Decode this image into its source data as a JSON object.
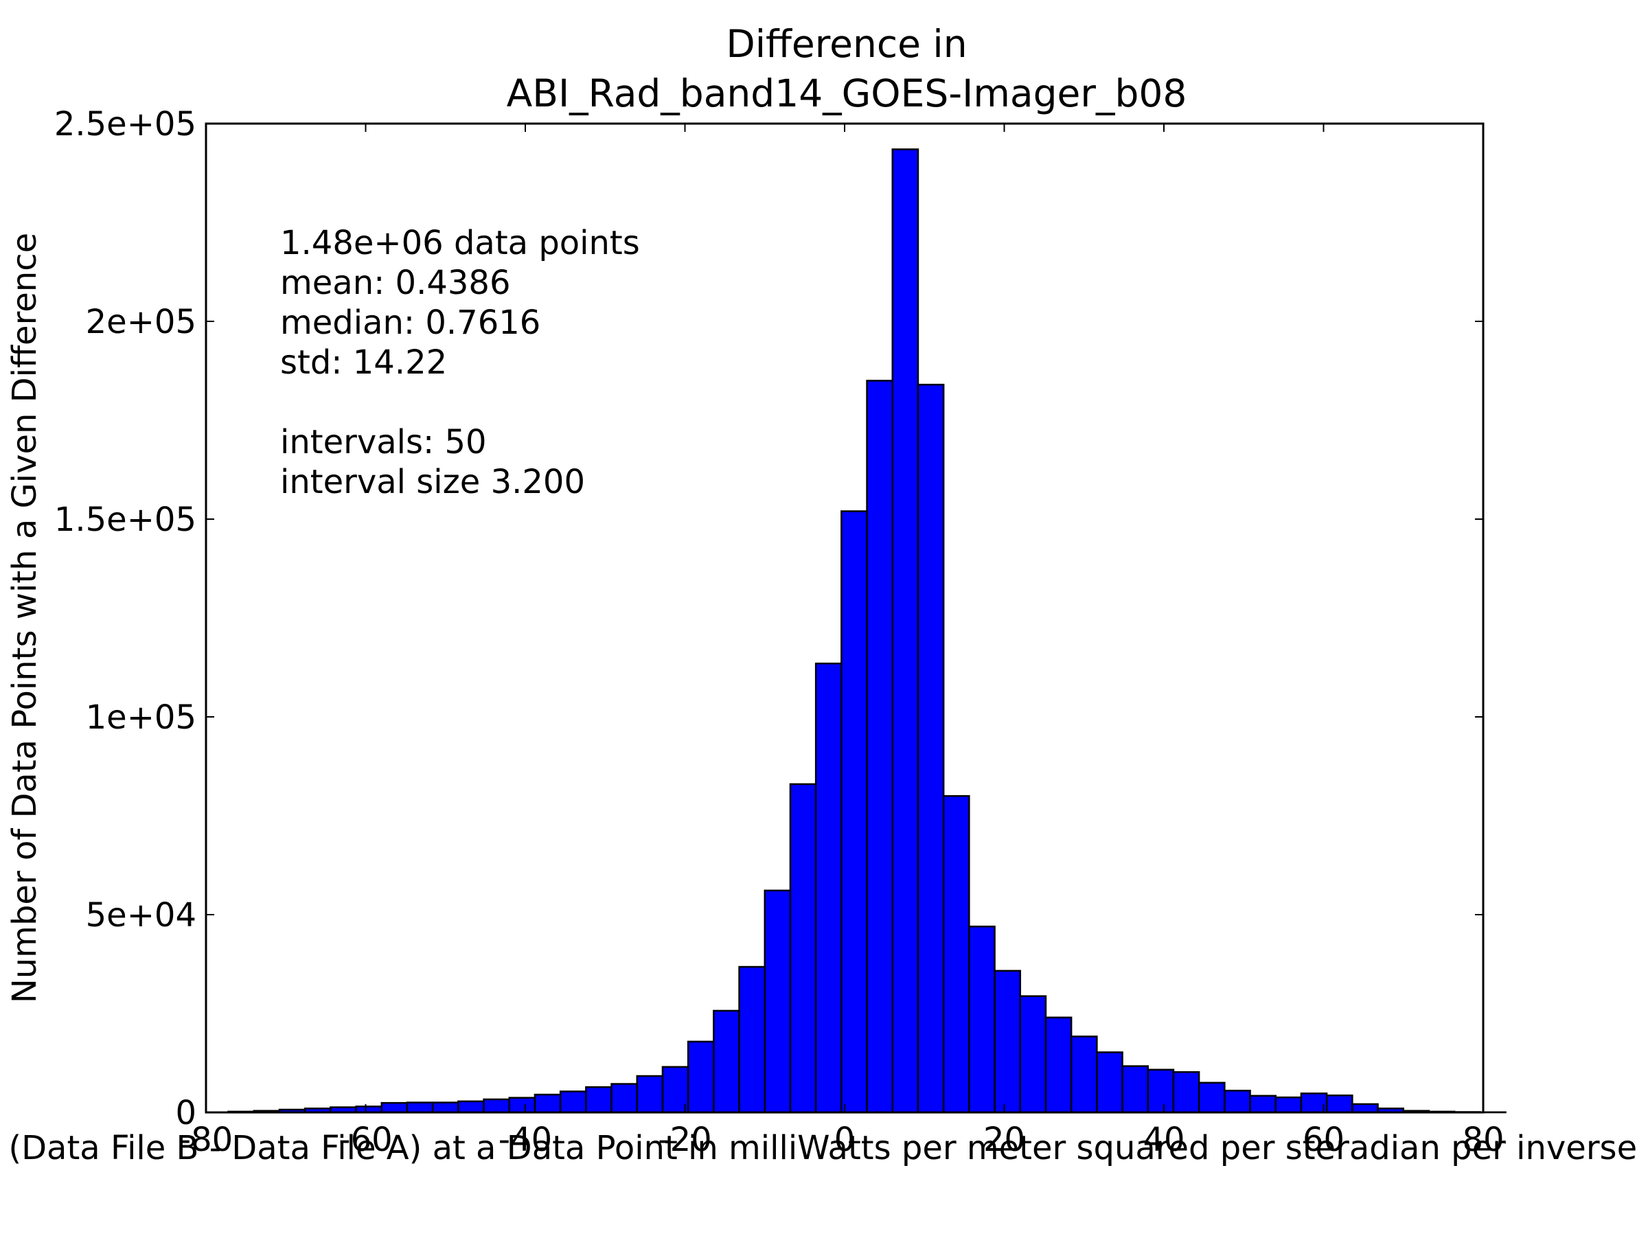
{
  "chart_data": {
    "type": "bar",
    "title_lines": [
      "Difference in",
      "ABI_Rad_band14_GOES-Imager_b08"
    ],
    "xlabel": "Value of (Data File B - Data File A) at a Data Point in milliWatts per meter squared per steradian per inverse centimeter",
    "ylabel": "Number of Data Points with a Given Difference",
    "xlim": [
      -80,
      80
    ],
    "ylim": [
      0,
      250000
    ],
    "x_ticks": [
      -80,
      -60,
      -40,
      -20,
      0,
      20,
      40,
      60,
      80
    ],
    "x_tick_labels": [
      "-80",
      "-60",
      "-40",
      "-20",
      "0",
      "20",
      "40",
      "60",
      "80"
    ],
    "y_ticks": [
      0,
      50000,
      100000,
      150000,
      200000,
      250000
    ],
    "y_tick_labels": [
      "0",
      "5e+04",
      "1e+05",
      "1.5e+05",
      "2e+05",
      "2.5e+05"
    ],
    "bar_color": "#0000ff",
    "bar_edge_color": "#000000",
    "bin_start": -77.2,
    "bin_width": 3.2,
    "values": [
      200,
      400,
      700,
      1000,
      1300,
      1500,
      2400,
      2500,
      2500,
      2800,
      3300,
      3700,
      4500,
      5300,
      6400,
      7200,
      9200,
      11500,
      17900,
      25700,
      36800,
      56100,
      83000,
      113500,
      152000,
      185000,
      243500,
      184000,
      80000,
      47000,
      35800,
      29400,
      24000,
      19200,
      15200,
      11700,
      10800,
      10200,
      7500,
      5500,
      4200,
      3800,
      4800,
      4300,
      2100,
      1000,
      400,
      200,
      100,
      50
    ],
    "annotation_lines": [
      "1.48e+06 data points",
      "mean: 0.4386",
      "median: 0.7616",
      "std: 14.22",
      "",
      "intervals: 50",
      "interval size 3.200"
    ]
  }
}
